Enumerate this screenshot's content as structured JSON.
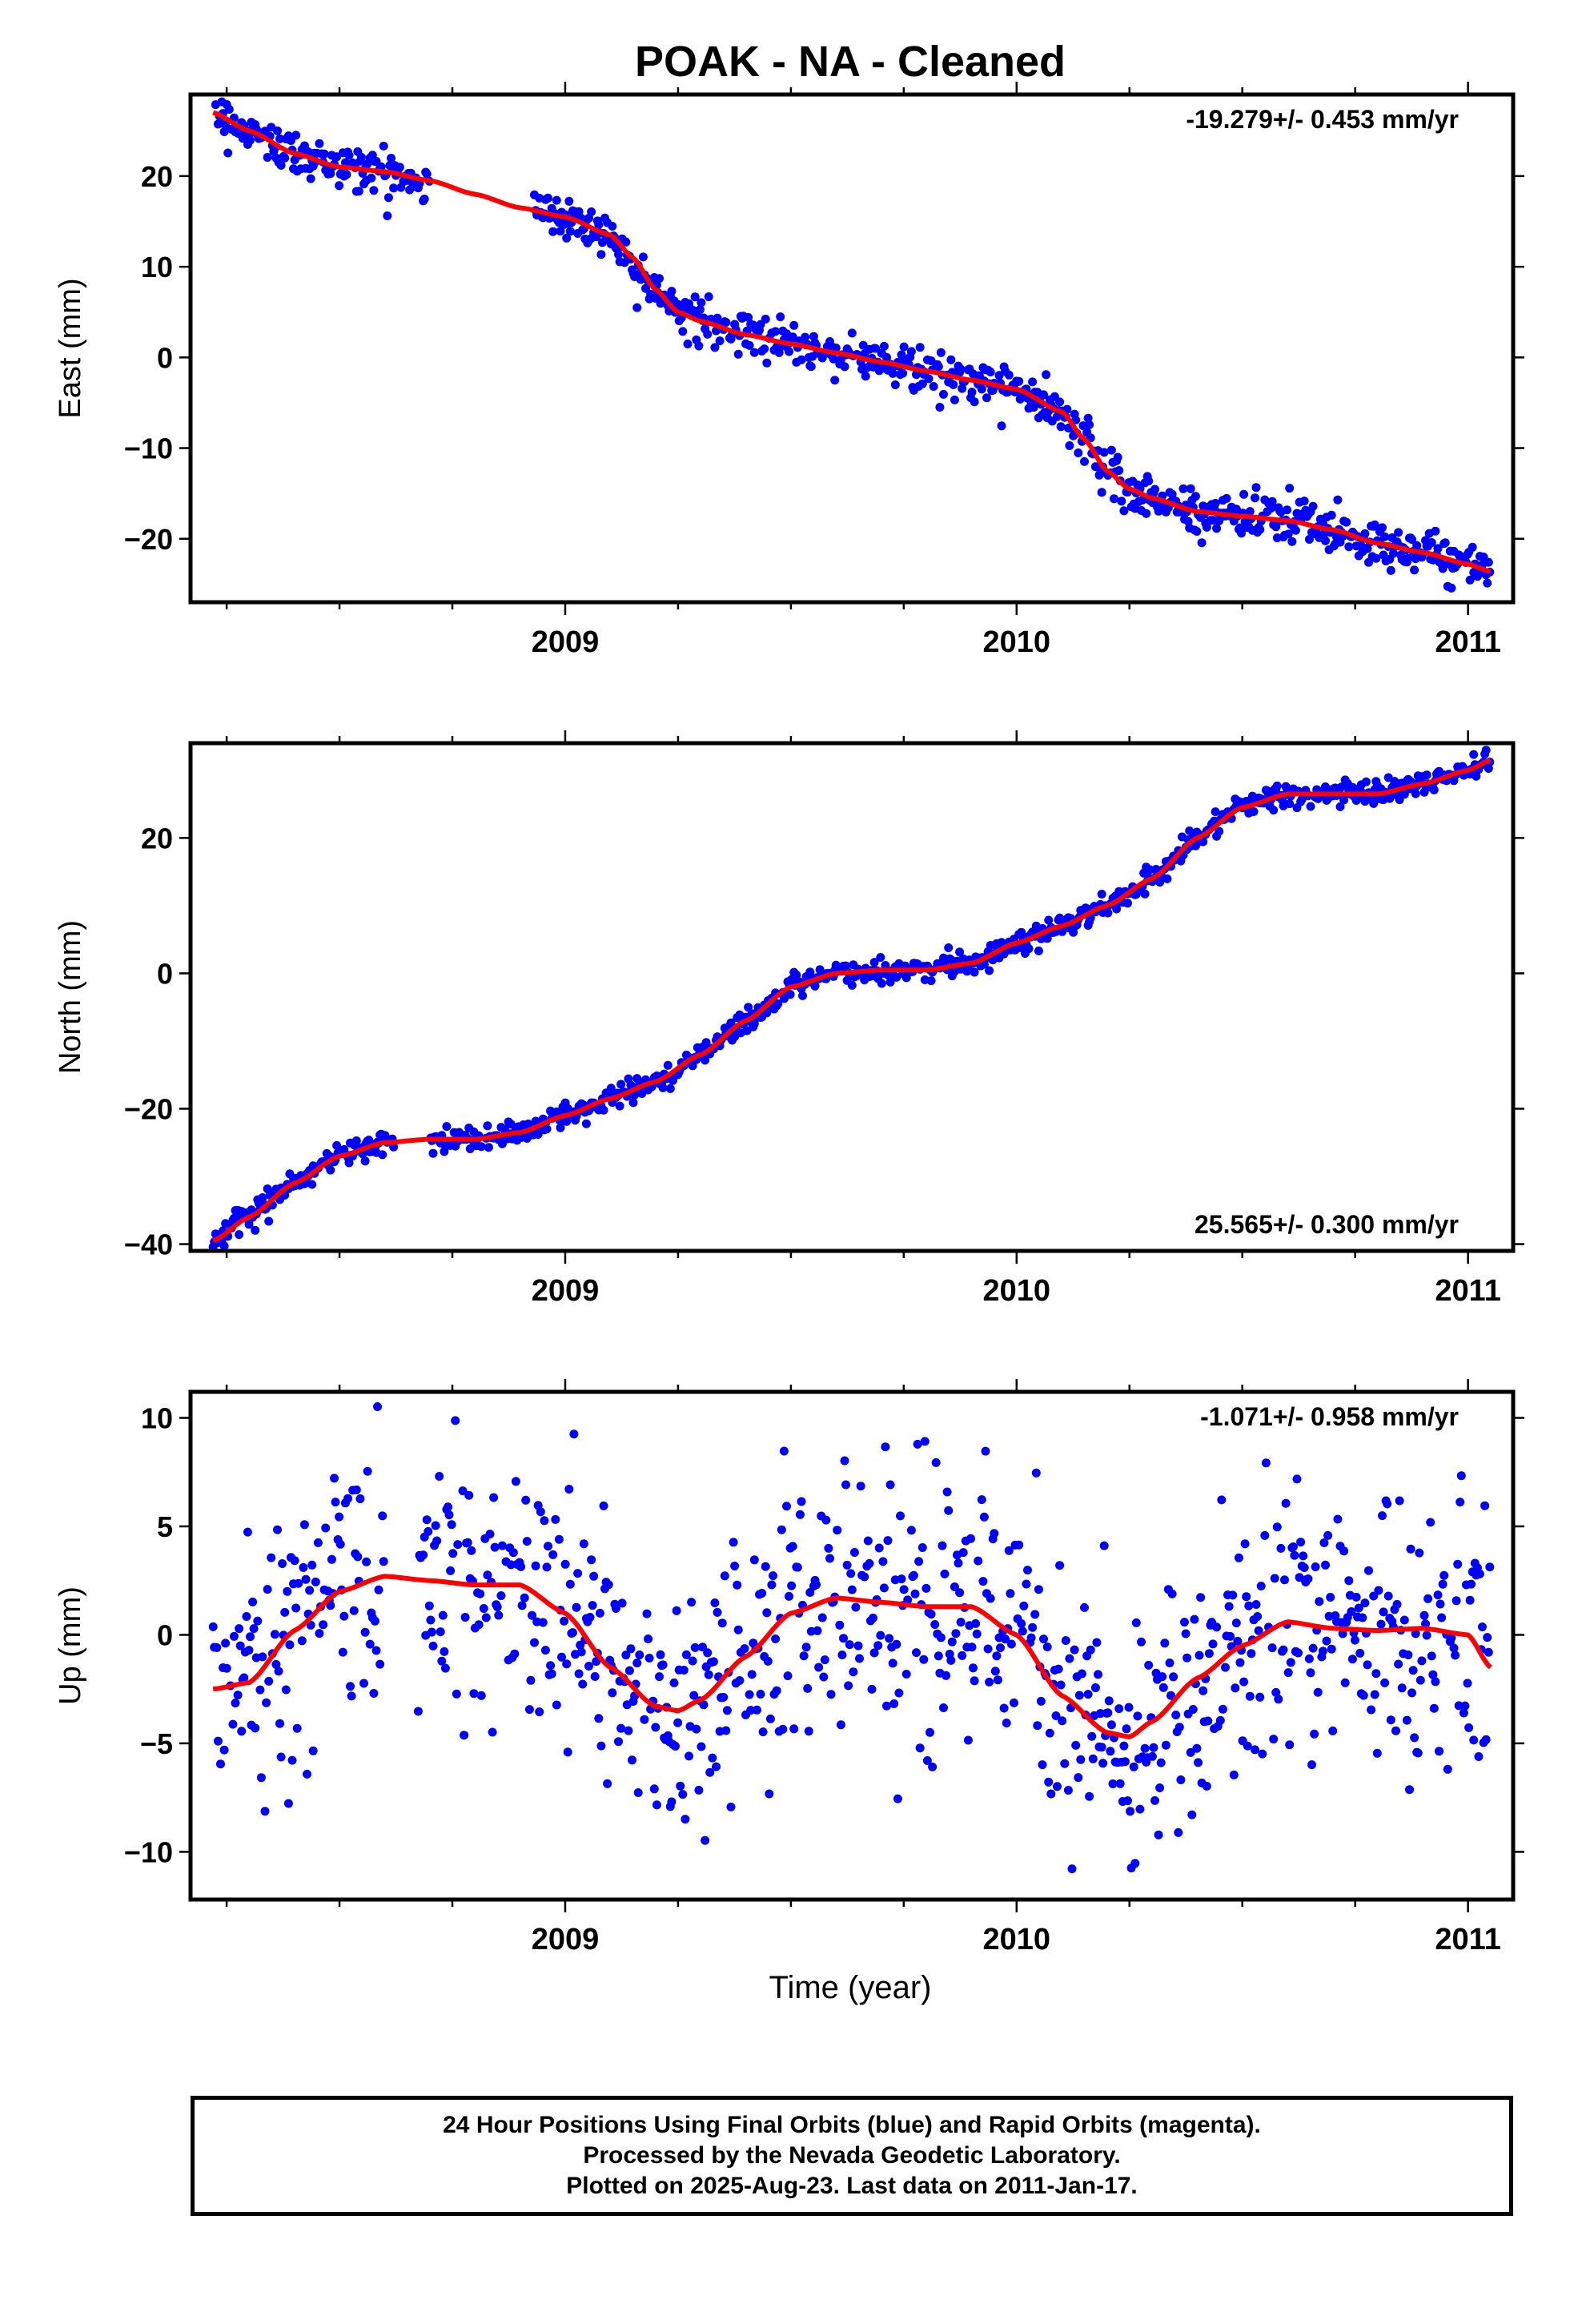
{
  "title": "POAK  - NA - Cleaned",
  "xlabel": "Time (year)",
  "colors": {
    "data": "#0000ff",
    "fit": "#ff0000",
    "frame": "#000000"
  },
  "footer": {
    "line1": "24 Hour Positions Using Final Orbits (blue) and Rapid Orbits (magenta).",
    "line2": "Processed by the Nevada Geodetic Laboratory.",
    "line3": "Plotted on 2025-Aug-23. Last data on 2011-Jan-17."
  },
  "chart_data": [
    {
      "type": "scatter",
      "component": "East",
      "ylabel": "East (mm)",
      "rate_label": "-19.279+/- 0.453 mm/yr",
      "rate_position": "top-right",
      "xlim": [
        2008.17,
        2011.1
      ],
      "ylim": [
        -27,
        29
      ],
      "xticks": [
        2009,
        2010,
        2011
      ],
      "xtick_labels": [
        "2009",
        "2010",
        "2011"
      ],
      "yticks": [
        -20,
        -10,
        0,
        10,
        20
      ],
      "ytick_labels": [
        "−20",
        "−10",
        "0",
        "10",
        "20"
      ],
      "data_span": [
        2008.22,
        2011.05
      ],
      "data_gap": [
        2008.7,
        2008.93
      ],
      "trend": {
        "x": [
          2008.22,
          2008.3,
          2008.4,
          2008.5,
          2008.6,
          2008.7,
          2008.8,
          2008.9,
          2009.0,
          2009.1,
          2009.15,
          2009.2,
          2009.25,
          2009.3,
          2009.4,
          2009.5,
          2009.6,
          2009.7,
          2009.8,
          2009.9,
          2010.0,
          2010.1,
          2010.15,
          2010.2,
          2010.25,
          2010.3,
          2010.4,
          2010.5,
          2010.6,
          2010.7,
          2010.8,
          2010.9,
          2011.0,
          2011.05
        ],
        "y": [
          27.0,
          25.0,
          22.5,
          21.0,
          20.5,
          19.5,
          18.0,
          16.5,
          15.5,
          13.5,
          11.0,
          7.5,
          5.0,
          4.0,
          2.5,
          1.5,
          0.5,
          -0.5,
          -1.5,
          -2.5,
          -3.5,
          -6.0,
          -9.0,
          -12.5,
          -14.5,
          -15.5,
          -17.0,
          -17.5,
          -18.0,
          -19.0,
          -20.5,
          -21.5,
          -22.8,
          -23.6
        ]
      },
      "scatter_sigma": 1.2
    },
    {
      "type": "scatter",
      "component": "North",
      "ylabel": "North (mm)",
      "rate_label": "25.565+/- 0.300 mm/yr",
      "rate_position": "bottom-right",
      "xlim": [
        2008.17,
        2011.1
      ],
      "ylim": [
        -41,
        34
      ],
      "xticks": [
        2009,
        2010,
        2011
      ],
      "xtick_labels": [
        "2009",
        "2010",
        "2011"
      ],
      "yticks": [
        -40,
        -20,
        0,
        20
      ],
      "ytick_labels": [
        "−40",
        "−20",
        "0",
        "20"
      ],
      "data_span": [
        2008.22,
        2011.05
      ],
      "data_gap": [
        2008.62,
        2008.7
      ],
      "trend": {
        "x": [
          2008.22,
          2008.3,
          2008.4,
          2008.5,
          2008.6,
          2008.7,
          2008.8,
          2008.9,
          2009.0,
          2009.1,
          2009.2,
          2009.3,
          2009.4,
          2009.5,
          2009.6,
          2009.7,
          2009.8,
          2009.9,
          2010.0,
          2010.1,
          2010.2,
          2010.3,
          2010.4,
          2010.5,
          2010.6,
          2010.7,
          2010.8,
          2010.9,
          2011.0,
          2011.05
        ],
        "y": [
          -39.5,
          -36.0,
          -31.0,
          -27.0,
          -25.0,
          -24.5,
          -24.5,
          -23.5,
          -21.0,
          -18.5,
          -16.0,
          -12.0,
          -7.0,
          -2.0,
          0.0,
          0.5,
          0.5,
          1.5,
          4.5,
          7.0,
          10.0,
          14.0,
          20.0,
          24.5,
          26.5,
          26.5,
          26.5,
          28.0,
          30.0,
          31.5
        ]
      },
      "scatter_sigma": 0.9
    },
    {
      "type": "scatter",
      "component": "Up",
      "ylabel": "Up (mm)",
      "rate_label": "-1.071+/- 0.958 mm/yr",
      "rate_position": "top-right",
      "xlim": [
        2008.17,
        2011.1
      ],
      "ylim": [
        -12.2,
        11.2
      ],
      "xticks": [
        2009,
        2010,
        2011
      ],
      "xtick_labels": [
        "2009",
        "2010",
        "2011"
      ],
      "yticks": [
        -10,
        -5,
        0,
        5,
        10
      ],
      "ytick_labels": [
        "−10",
        "−5",
        "0",
        "5",
        "10"
      ],
      "data_span": [
        2008.22,
        2011.05
      ],
      "data_gap": [
        2008.6,
        2008.67
      ],
      "trend": {
        "x": [
          2008.22,
          2008.3,
          2008.4,
          2008.5,
          2008.6,
          2008.7,
          2008.8,
          2008.9,
          2009.0,
          2009.1,
          2009.2,
          2009.25,
          2009.3,
          2009.4,
          2009.5,
          2009.6,
          2009.7,
          2009.8,
          2009.9,
          2010.0,
          2010.1,
          2010.2,
          2010.25,
          2010.3,
          2010.4,
          2010.5,
          2010.6,
          2010.7,
          2010.8,
          2010.9,
          2011.0,
          2011.05
        ],
        "y": [
          -2.5,
          -2.2,
          0.2,
          2.0,
          2.7,
          2.5,
          2.3,
          2.3,
          1.0,
          -1.5,
          -3.3,
          -3.5,
          -3.0,
          -1.0,
          1.0,
          1.7,
          1.5,
          1.3,
          1.3,
          0.0,
          -2.8,
          -4.5,
          -4.7,
          -4.0,
          -2.0,
          -0.5,
          0.6,
          0.3,
          0.2,
          0.3,
          0.0,
          -1.5
        ]
      },
      "scatter_sigma": 3.0
    }
  ]
}
